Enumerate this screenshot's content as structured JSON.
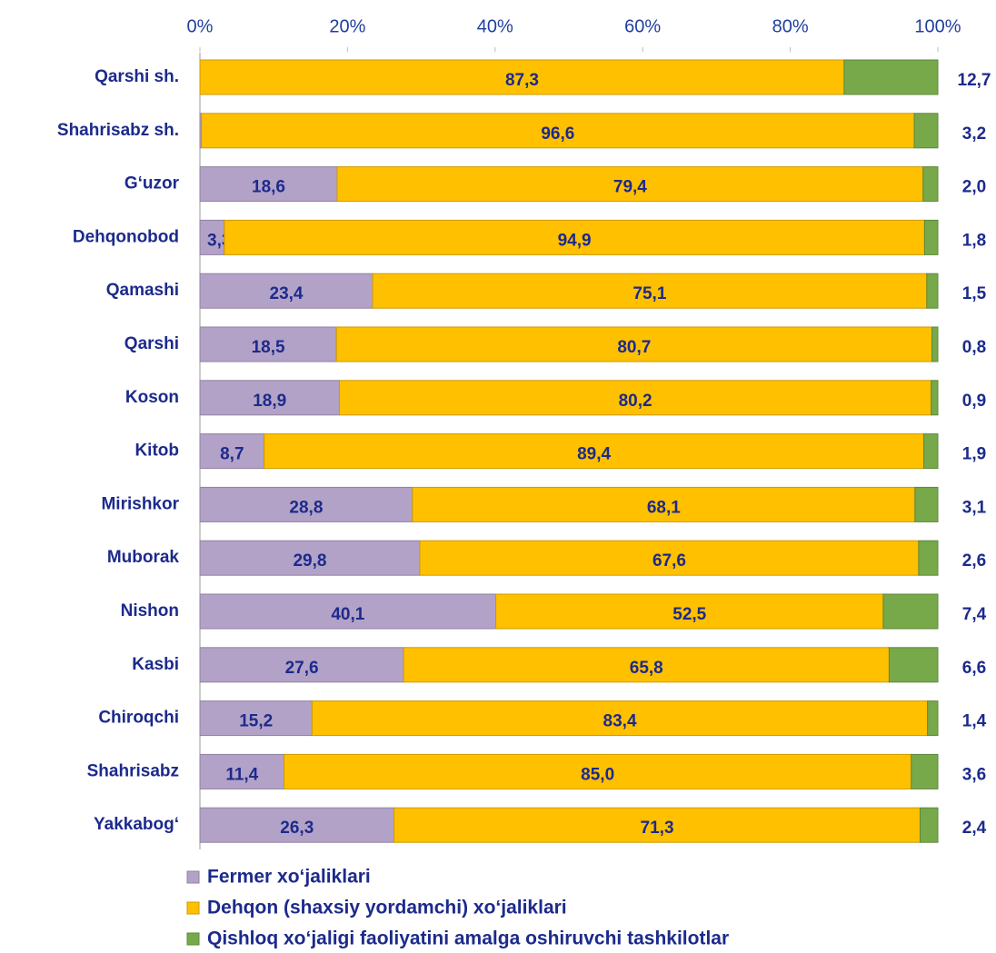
{
  "chart_data": {
    "type": "stacked_bar_horizontal",
    "categories": [
      "Qarshi sh.",
      "Shahrisabz sh.",
      "G‘uzor",
      "Dehqonobod",
      "Qamashi",
      "Qarshi",
      "Koson",
      "Kitob",
      "Mirishkor",
      "Muborak",
      "Nishon",
      "Kasbi",
      "Chiroqchi",
      "Shahrisabz",
      "Yakkabog‘"
    ],
    "series": [
      {
        "name": "Fermer xo‘jaliklari",
        "color": "#b3a2c7",
        "values": [
          0.0,
          0.2,
          18.6,
          3.3,
          23.4,
          18.5,
          18.9,
          8.7,
          28.8,
          29.8,
          40.1,
          27.6,
          15.2,
          11.4,
          26.3
        ],
        "value_labels": [
          "0,0",
          "0,2",
          "18,6",
          "3,3",
          "23,4",
          "18,5",
          "18,9",
          "8,7",
          "28,8",
          "29,8",
          "40,1",
          "27,6",
          "15,2",
          "11,4",
          "26,3"
        ]
      },
      {
        "name": "Dehqon (shaxsiy yordamchi)  xo‘jaliklari",
        "color": "#ffc000",
        "values": [
          87.3,
          96.6,
          79.4,
          94.9,
          75.1,
          80.7,
          80.2,
          89.4,
          68.1,
          67.6,
          52.5,
          65.8,
          83.4,
          85.0,
          71.3
        ],
        "value_labels": [
          "87,3",
          "96,6",
          "79,4",
          "94,9",
          "75,1",
          "80,7",
          "80,2",
          "89,4",
          "68,1",
          "67,6",
          "52,5",
          "65,8",
          "83,4",
          "85,0",
          "71,3"
        ]
      },
      {
        "name": "Qishloq xo‘jaligi faoliyatini amalga oshiruvchi tashkilotlar",
        "color": "#77a94a",
        "values": [
          12.7,
          3.2,
          2.0,
          1.8,
          1.5,
          0.8,
          0.9,
          1.9,
          3.1,
          2.6,
          7.4,
          6.6,
          1.4,
          3.6,
          2.4
        ],
        "value_labels": [
          "12,7",
          "3,2",
          "2,0",
          "1,8",
          "1,5",
          "0,8",
          "0,9",
          "1,9",
          "3,1",
          "2,6",
          "7,4",
          "6,6",
          "1,4",
          "3,6",
          "2,4"
        ]
      }
    ],
    "xlim": [
      0,
      100
    ],
    "xticks": [
      {
        "value": 0,
        "label": "0%"
      },
      {
        "value": 20,
        "label": "20%"
      },
      {
        "value": 40,
        "label": "40%"
      },
      {
        "value": 60,
        "label": "60%"
      },
      {
        "value": 80,
        "label": "80%"
      },
      {
        "value": 100,
        "label": "100%"
      }
    ],
    "legend": "bottom"
  }
}
